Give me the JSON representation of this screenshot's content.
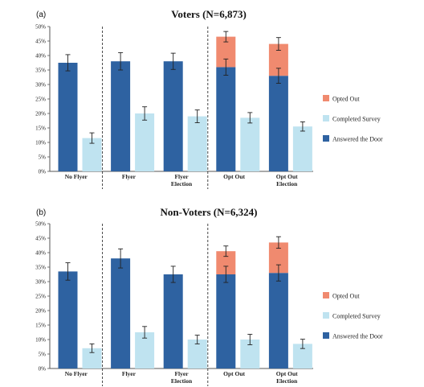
{
  "colors": {
    "answered": "#2E62A1",
    "completed": "#BFE3F0",
    "opted": "#F08A6F",
    "axis": "#555555",
    "divider": "#333333",
    "error": "#222222"
  },
  "legend": [
    "Opted Out",
    "Completed Survey",
    "Answered the Door"
  ],
  "chart_data": [
    {
      "type": "bar",
      "panel": "(a)",
      "title": "Voters (N=6,873)",
      "categories": [
        "No Flyer",
        "Flyer",
        "Flyer Election",
        "Opt Out",
        "Opt Out Election"
      ],
      "category_labels": [
        [
          "No Flyer"
        ],
        [
          "Flyer"
        ],
        [
          "Flyer",
          "Election"
        ],
        [
          "Opt Out"
        ],
        [
          "Opt Out",
          "Election"
        ]
      ],
      "series": [
        {
          "name": "Answered the Door",
          "values": [
            37.5,
            38.0,
            38.0,
            36.0,
            33.0
          ],
          "errors": [
            2.8,
            3.0,
            2.8,
            2.8,
            2.6
          ]
        },
        {
          "name": "Completed Survey",
          "values": [
            11.5,
            20.0,
            19.0,
            18.5,
            15.5
          ],
          "errors": [
            1.8,
            2.3,
            2.2,
            1.8,
            1.6
          ]
        },
        {
          "name": "Opted Out",
          "stacked_on": "Answered the Door",
          "values": [
            null,
            null,
            null,
            10.5,
            11.0
          ],
          "errors": [
            null,
            null,
            null,
            1.8,
            2.2
          ]
        }
      ],
      "yticks": [
        "0%",
        "5%",
        "10%",
        "15%",
        "20%",
        "25%",
        "30%",
        "35%",
        "40%",
        "45%",
        "50%"
      ],
      "ylim": [
        0,
        50
      ],
      "legend_position": "right",
      "group_dividers_after": [
        0,
        2
      ]
    },
    {
      "type": "bar",
      "panel": "(b)",
      "title": "Non-Voters (N=6,324)",
      "categories": [
        "No Flyer",
        "Flyer",
        "Flyer Election",
        "Opt Out",
        "Opt Out Election"
      ],
      "category_labels": [
        [
          "No Flyer"
        ],
        [
          "Flyer"
        ],
        [
          "Flyer",
          "Election"
        ],
        [
          "Opt Out"
        ],
        [
          "Opt Out",
          "Election"
        ]
      ],
      "series": [
        {
          "name": "Answered the Door",
          "values": [
            33.5,
            38.0,
            32.5,
            32.5,
            33.0
          ],
          "errors": [
            3.0,
            3.3,
            2.8,
            2.8,
            2.8
          ]
        },
        {
          "name": "Completed Survey",
          "values": [
            7.0,
            12.5,
            10.0,
            10.0,
            8.5
          ],
          "errors": [
            1.5,
            2.0,
            1.5,
            1.8,
            1.6
          ]
        },
        {
          "name": "Opted Out",
          "stacked_on": "Answered the Door",
          "values": [
            null,
            null,
            null,
            8.0,
            10.5
          ],
          "errors": [
            null,
            null,
            null,
            1.8,
            2.0
          ]
        }
      ],
      "yticks": [
        "0%",
        "5%",
        "10%",
        "15%",
        "20%",
        "25%",
        "30%",
        "35%",
        "40%",
        "45%",
        "50%"
      ],
      "ylim": [
        0,
        50
      ],
      "legend_position": "right",
      "group_dividers_after": [
        0,
        2
      ]
    }
  ]
}
